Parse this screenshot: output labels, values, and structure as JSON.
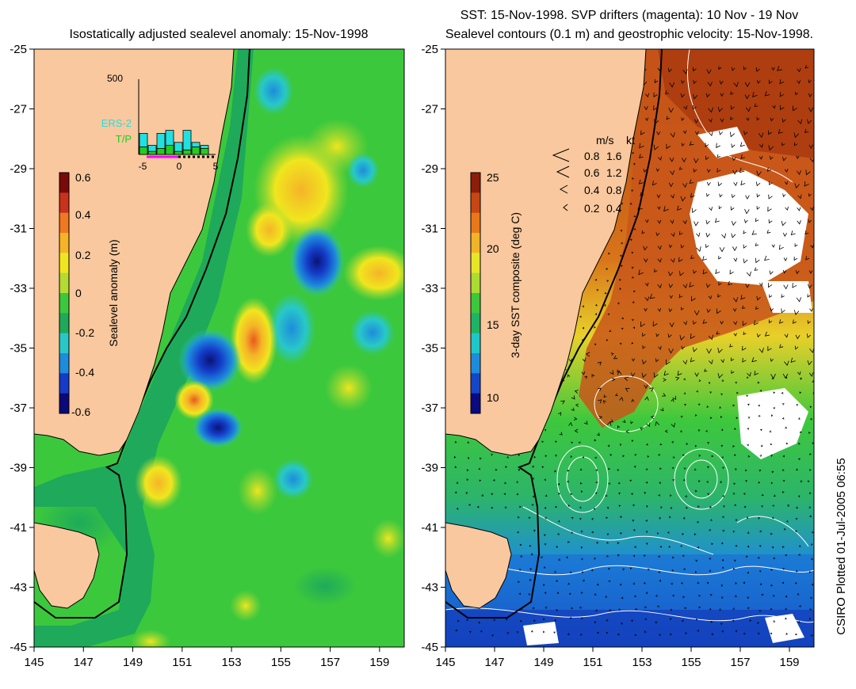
{
  "left_panel": {
    "title": "Isostatically adjusted sealevel anomaly: 15-Nov-1998",
    "colorbar": {
      "label": "Sealevel anomaly (m)",
      "ticks": [
        "0.6",
        "0.4",
        "0.2",
        "0",
        "-0.2",
        "-0.4",
        "-0.6"
      ],
      "colors": [
        "#7a0a0a",
        "#c8321e",
        "#f07820",
        "#f5b428",
        "#f0e61e",
        "#b4dc32",
        "#3cc83c",
        "#1eaa5a",
        "#28c8c8",
        "#1e8cdc",
        "#143cc8",
        "#0a0a78"
      ]
    },
    "histogram": {
      "ymax_label": "500",
      "legend": [
        {
          "label": "ERS-2",
          "color": "#22e0e0"
        },
        {
          "label": "T/P",
          "color": "#22cc22"
        }
      ],
      "x_ticks": [
        "-5",
        "0",
        "5"
      ],
      "bars_ers2": [
        0.28,
        0.12,
        0.28,
        0.32,
        0.16,
        0.32,
        0.16,
        0.12
      ],
      "bars_tp": [
        0.1,
        0.04,
        0.08,
        0.12,
        0.04,
        0.06,
        0.1,
        0.08
      ]
    }
  },
  "right_panel": {
    "title_line1": "SST: 15-Nov-1998. SVP drifters (magenta): 10 Nov - 19 Nov",
    "title_line2": "Sealevel contours (0.1 m) and geostrophic velocity: 15-Nov-1998.",
    "colorbar": {
      "label": "3-day SST composite (deg C)",
      "ticks": [
        "25",
        "20",
        "15",
        "10"
      ],
      "colors": [
        "#8c1e0a",
        "#c84614",
        "#e87818",
        "#f0b428",
        "#e6e628",
        "#aadc32",
        "#3cc83c",
        "#1eb464",
        "#1ec8c8",
        "#1e8cdc",
        "#1446c8",
        "#0a0a82"
      ]
    },
    "velocity_legend": {
      "header_ms": "m/s",
      "header_kt": "kt",
      "rows": [
        {
          "ms": "0.8",
          "kt": "1.6"
        },
        {
          "ms": "0.6",
          "kt": "1.2"
        },
        {
          "ms": "0.4",
          "kt": "0.8"
        },
        {
          "ms": "0.2",
          "kt": "0.4"
        }
      ]
    }
  },
  "axes": {
    "y_ticks": [
      "-25",
      "-27",
      "-29",
      "-31",
      "-33",
      "-35",
      "-37",
      "-39",
      "-41",
      "-43",
      "-45"
    ],
    "x_ticks": [
      "145",
      "147",
      "149",
      "151",
      "153",
      "155",
      "157",
      "159"
    ],
    "lat_range": [
      -45,
      -25
    ],
    "lon_range": [
      145,
      160
    ]
  },
  "credit": "CSIRO Plotted 01-Jul-2005 06:55",
  "colors": {
    "land": "#f9c89e",
    "sea_green": "#3cc83c",
    "sst_warm": "#c84614",
    "cloud": "#ffffff"
  }
}
